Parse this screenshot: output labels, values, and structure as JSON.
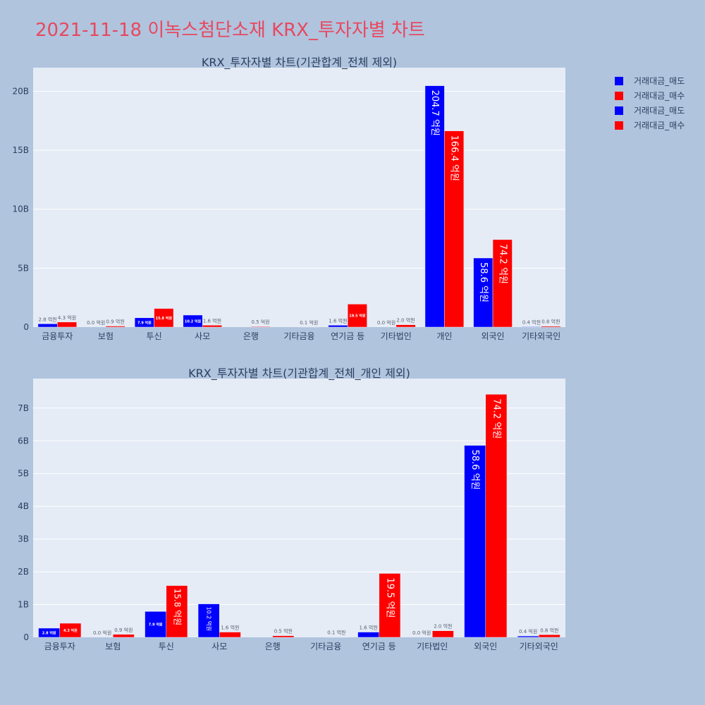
{
  "page_title": "2021-11-18 이녹스첨단소재 KRX_투자자별 차트",
  "colors": {
    "sell": "#0000ff",
    "buy": "#ff0000",
    "title": "#e8485f",
    "plot_bg": "#e5ecf6",
    "page_bg": "#b0c4de"
  },
  "legend": [
    {
      "label": "거래대금_매도",
      "color": "#0000ff"
    },
    {
      "label": "거래대금_매수",
      "color": "#ff0000"
    },
    {
      "label": "거래대금_매도",
      "color": "#0000ff"
    },
    {
      "label": "거래대금_매수",
      "color": "#ff0000"
    }
  ],
  "chart_data": [
    {
      "type": "bar",
      "title": "KRX_투자자별 차트(기관합계_전체 제외)",
      "categories": [
        "금융투자",
        "보험",
        "투신",
        "사모",
        "은행",
        "기타금융",
        "연기금 등",
        "기타법인",
        "개인",
        "외국인",
        "기타외국인"
      ],
      "ylim": [
        0,
        22000000000
      ],
      "yticks": [
        0,
        5000000000,
        10000000000,
        15000000000,
        20000000000
      ],
      "ytick_labels": [
        "0",
        "5B",
        "10B",
        "15B",
        "20B"
      ],
      "grid": true,
      "legend_position": "top-right",
      "series": [
        {
          "name": "거래대금_매도",
          "color": "#0000ff",
          "values": [
            280000000,
            0,
            790000000,
            1020000000,
            0,
            0,
            160000000,
            0,
            20470000000,
            5860000000,
            40000000
          ],
          "labels": [
            "2.8 억원",
            "0.0 억원",
            "7.9 억원",
            "10.2 억원",
            "",
            "",
            "1.6 억원",
            "0.0 억원",
            "204.7 억원",
            "58.6 억원",
            "0.4 억원"
          ]
        },
        {
          "name": "거래대금_매수",
          "color": "#ff0000",
          "values": [
            430000000,
            90000000,
            1580000000,
            160000000,
            50000000,
            10000000,
            1950000000,
            200000000,
            16640000000,
            7420000000,
            80000000
          ],
          "labels": [
            "4.3 억원",
            "0.9 억원",
            "15.8 억원",
            "1.6 억원",
            "0.5 억원",
            "0.1 억원",
            "19.5 억원",
            "2.0 억원",
            "166.4 억원",
            "74.2 억원",
            "0.8 억원"
          ]
        }
      ]
    },
    {
      "type": "bar",
      "title": "KRX_투자자별 차트(기관합계_전체_개인 제외)",
      "categories": [
        "금융투자",
        "보험",
        "투신",
        "사모",
        "은행",
        "기타금융",
        "연기금 등",
        "기타법인",
        "외국인",
        "기타외국인"
      ],
      "ylim": [
        0,
        7900000000
      ],
      "yticks": [
        0,
        1000000000,
        2000000000,
        3000000000,
        4000000000,
        5000000000,
        6000000000,
        7000000000
      ],
      "ytick_labels": [
        "0",
        "1B",
        "2B",
        "3B",
        "4B",
        "5B",
        "6B",
        "7B"
      ],
      "grid": true,
      "series": [
        {
          "name": "거래대금_매도",
          "color": "#0000ff",
          "values": [
            280000000,
            0,
            790000000,
            1020000000,
            0,
            0,
            160000000,
            0,
            5860000000,
            40000000
          ],
          "labels": [
            "2.8 억원",
            "0.0 억원",
            "7.9 억원",
            "10.2 억원",
            "",
            "",
            "1.6 억원",
            "0.0 억원",
            "58.6 억원",
            "0.4 억원"
          ]
        },
        {
          "name": "거래대금_매수",
          "color": "#ff0000",
          "values": [
            430000000,
            90000000,
            1580000000,
            160000000,
            50000000,
            10000000,
            1950000000,
            200000000,
            7420000000,
            80000000
          ],
          "labels": [
            "4.3 억원",
            "0.9 억원",
            "15.8 억원",
            "1.6 억원",
            "0.5 억원",
            "0.1 억원",
            "19.5 억원",
            "2.0 억원",
            "74.2 억원",
            "0.8 억원"
          ]
        }
      ]
    }
  ]
}
